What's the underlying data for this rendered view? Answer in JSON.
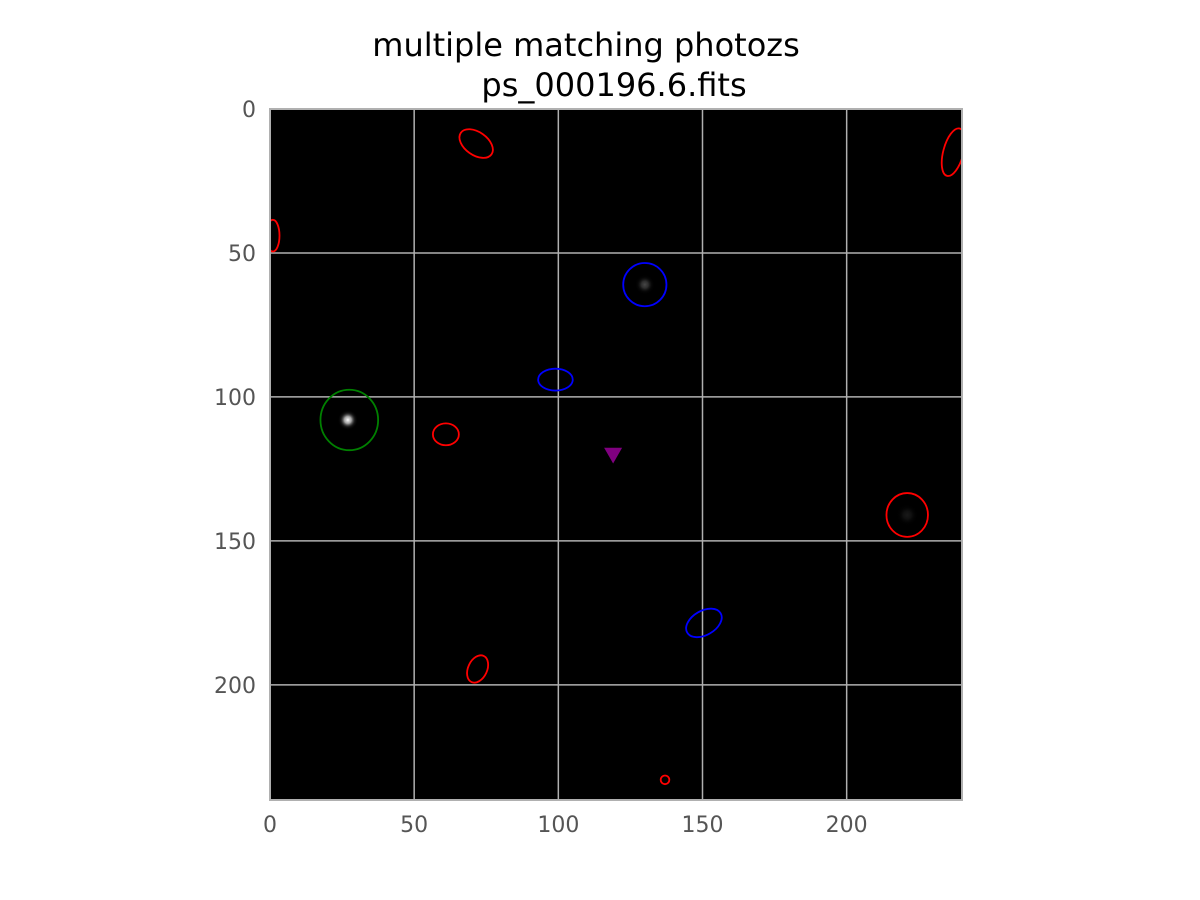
{
  "chart_data": {
    "type": "scatter",
    "title": "multiple matching photozs",
    "subtitle": "ps_000196.6.fits",
    "xlabel": "",
    "ylabel": "",
    "xlim": [
      0,
      240
    ],
    "ylim": [
      240,
      0
    ],
    "grid": true,
    "x_ticks": [
      0,
      50,
      100,
      150,
      200
    ],
    "y_ticks": [
      0,
      50,
      100,
      150,
      200
    ],
    "colors": {
      "background": "#000000",
      "grid": "#b0b0b0",
      "frame": "#b0b0b0",
      "red": "#ff0000",
      "blue": "#0000ff",
      "green": "#008000",
      "purple": "#800080"
    },
    "sources": [
      {
        "x": 27,
        "y": 108,
        "brightness": 1.0,
        "size": 3.5
      },
      {
        "x": 130,
        "y": 61,
        "brightness": 0.28,
        "size": 3.5
      },
      {
        "x": 221,
        "y": 141,
        "brightness": 0.1,
        "size": 4
      }
    ],
    "ellipses": [
      {
        "x": 71.5,
        "y": 12,
        "rx": 6.5,
        "ry": 4,
        "angle": 35,
        "color": "red"
      },
      {
        "x": 237,
        "y": 15,
        "rx": 8.5,
        "ry": 3.5,
        "angle": -75,
        "color": "red"
      },
      {
        "x": 1,
        "y": 44,
        "rx": 5.5,
        "ry": 2.3,
        "angle": 90,
        "color": "red"
      },
      {
        "x": 61,
        "y": 113,
        "rx": 4.5,
        "ry": 3.8,
        "angle": 0,
        "color": "red"
      },
      {
        "x": 221,
        "y": 141,
        "rx": 7.2,
        "ry": 7.6,
        "angle": 0,
        "color": "red"
      },
      {
        "x": 72,
        "y": 194.5,
        "rx": 5,
        "ry": 3.3,
        "angle": -65,
        "color": "red"
      },
      {
        "x": 137,
        "y": 233,
        "rx": 1.5,
        "ry": 1.5,
        "angle": 0,
        "color": "red"
      },
      {
        "x": 130,
        "y": 61,
        "rx": 7.5,
        "ry": 7.5,
        "angle": 0,
        "color": "blue"
      },
      {
        "x": 99,
        "y": 94,
        "rx": 6,
        "ry": 3.8,
        "angle": 0,
        "color": "blue"
      },
      {
        "x": 150.5,
        "y": 178.5,
        "rx": 6.7,
        "ry": 4.2,
        "angle": -30,
        "color": "blue"
      },
      {
        "x": 27.5,
        "y": 108,
        "rx": 10,
        "ry": 10.5,
        "angle": 0,
        "color": "green"
      }
    ],
    "markers": [
      {
        "x": 119,
        "y": 120,
        "shape": "triangle-down",
        "color": "purple"
      }
    ]
  }
}
